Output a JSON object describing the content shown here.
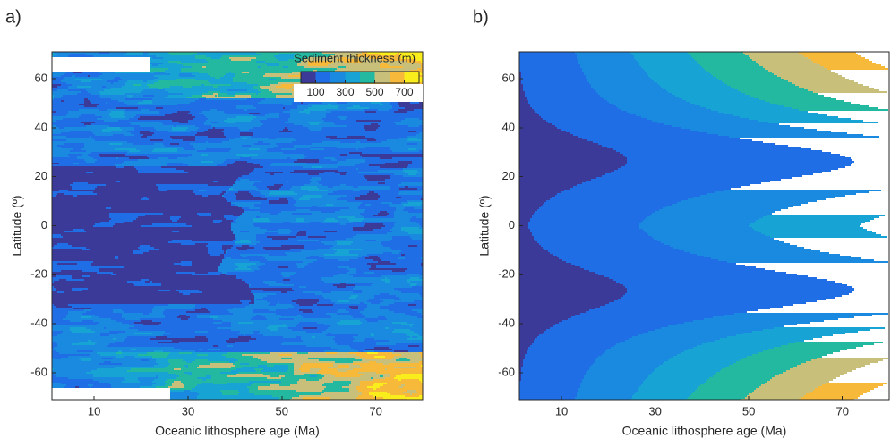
{
  "chart_data": [
    {
      "type": "contour",
      "panel_label": "a)",
      "xlabel": "Oceanic lithosphere age (Ma)",
      "ylabel": "Latitude (º)",
      "xlim": [
        1,
        80
      ],
      "ylim": [
        -71,
        71
      ],
      "xticks": [
        10,
        30,
        50,
        70
      ],
      "yticks": [
        -60,
        -40,
        -20,
        0,
        20,
        40,
        60
      ],
      "levels": [
        0,
        100,
        200,
        300,
        400,
        500,
        600,
        700,
        800
      ],
      "colors": [
        "#3b3a98",
        "#1f6ee6",
        "#1a8ae0",
        "#17a4d4",
        "#23b8a0",
        "#c8c07a",
        "#f7b93a",
        "#f9ee1c"
      ],
      "colorbar": {
        "title": "Sediment thickness (m)",
        "ticks": [
          100,
          300,
          500,
          700
        ]
      }
    },
    {
      "type": "contour",
      "panel_label": "b)",
      "xlabel": "Oceanic lithosphere age (Ma)",
      "ylabel": "Latitude (º)",
      "xlim": [
        1,
        80
      ],
      "ylim": [
        -71,
        71
      ],
      "xticks": [
        10,
        30,
        50,
        70
      ],
      "yticks": [
        -60,
        -40,
        -20,
        0,
        20,
        40,
        60
      ],
      "levels": [
        0,
        100,
        200,
        300,
        400,
        500,
        600,
        700,
        800
      ],
      "colors": [
        "#3b3a98",
        "#1f6ee6",
        "#1a8ae0",
        "#17a4d4",
        "#23b8a0",
        "#c8c07a",
        "#f7b93a",
        "#f9ee1c"
      ]
    }
  ]
}
